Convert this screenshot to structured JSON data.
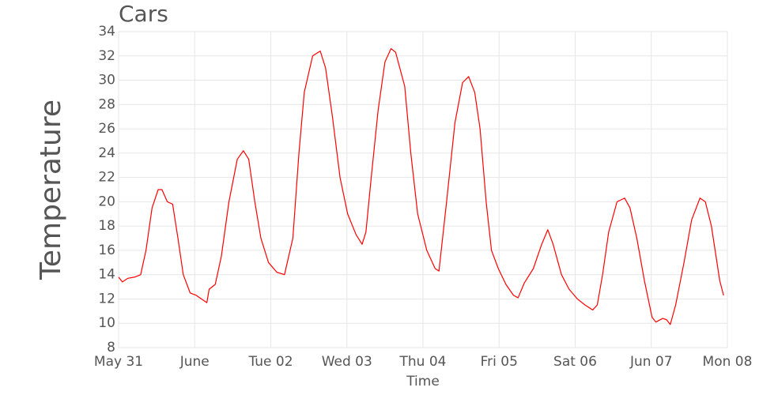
{
  "chart_data": {
    "type": "line",
    "title": "Cars",
    "x_label": "Time",
    "y_label": "Temperature",
    "x": [
      0,
      0.05,
      0.12,
      0.21,
      0.29,
      0.36,
      0.44,
      0.52,
      0.57,
      0.64,
      0.71,
      0.78,
      0.85,
      0.94,
      1.02,
      1.09,
      1.16,
      1.19,
      1.27,
      1.35,
      1.45,
      1.56,
      1.64,
      1.71,
      1.79,
      1.87,
      1.97,
      2.08,
      2.18,
      2.29,
      2.37,
      2.44,
      2.55,
      2.65,
      2.72,
      2.81,
      2.91,
      3.01,
      3.12,
      3.2,
      3.25,
      3.32,
      3.41,
      3.5,
      3.58,
      3.64,
      3.76,
      3.84,
      3.93,
      4.05,
      4.16,
      4.21,
      4.31,
      4.42,
      4.52,
      4.6,
      4.68,
      4.75,
      4.83,
      4.9,
      4.99,
      5.09,
      5.19,
      5.25,
      5.33,
      5.45,
      5.56,
      5.64,
      5.71,
      5.82,
      5.92,
      6.03,
      6.13,
      6.23,
      6.29,
      6.36,
      6.44,
      6.55,
      6.65,
      6.72,
      6.81,
      6.91,
      7.01,
      7.06,
      7.15,
      7.2,
      7.25,
      7.32,
      7.43,
      7.53,
      7.64,
      7.71,
      7.79,
      7.9,
      7.95
    ],
    "series": [
      {
        "name": "Cars",
        "color": "#ff0000",
        "values": [
          13.8,
          13.4,
          13.7,
          13.8,
          14,
          16,
          19.5,
          21,
          21,
          20,
          19.8,
          17,
          14,
          12.5,
          12.3,
          12,
          11.7,
          12.8,
          13.2,
          15.5,
          20,
          23.5,
          24.2,
          23.5,
          20,
          17,
          15,
          14.2,
          14,
          17,
          24,
          29,
          32,
          32.4,
          31,
          27,
          22,
          19,
          17.3,
          16.5,
          17.5,
          22,
          27.5,
          31.5,
          32.6,
          32.3,
          29.5,
          24,
          19,
          16,
          14.5,
          14.3,
          20,
          26.5,
          29.8,
          30.3,
          29,
          26,
          20,
          16,
          14.5,
          13.2,
          12.3,
          12.1,
          13.3,
          14.5,
          16.5,
          17.7,
          16.5,
          14,
          12.8,
          12,
          11.5,
          11.1,
          11.5,
          14,
          17.5,
          20,
          20.3,
          19.5,
          17,
          13.5,
          10.5,
          10.1,
          10.4,
          10.3,
          9.9,
          11.5,
          15,
          18.5,
          20.3,
          20,
          18,
          13.5,
          12.3
        ]
      }
    ],
    "xlim": [
      0,
      8
    ],
    "xticks": [
      {
        "value": 0,
        "label": "May 31"
      },
      {
        "value": 1,
        "label": "June"
      },
      {
        "value": 2,
        "label": "Tue 02"
      },
      {
        "value": 3,
        "label": "Wed 03"
      },
      {
        "value": 4,
        "label": "Thu 04"
      },
      {
        "value": 5,
        "label": "Fri 05"
      },
      {
        "value": 6,
        "label": "Sat 06"
      },
      {
        "value": 7,
        "label": "Jun 07"
      },
      {
        "value": 8,
        "label": "Mon 08"
      }
    ],
    "ylim": [
      8,
      34
    ],
    "yticks": [
      8,
      10,
      12,
      14,
      16,
      18,
      20,
      22,
      24,
      26,
      28,
      30,
      32,
      34
    ],
    "grid": true
  }
}
